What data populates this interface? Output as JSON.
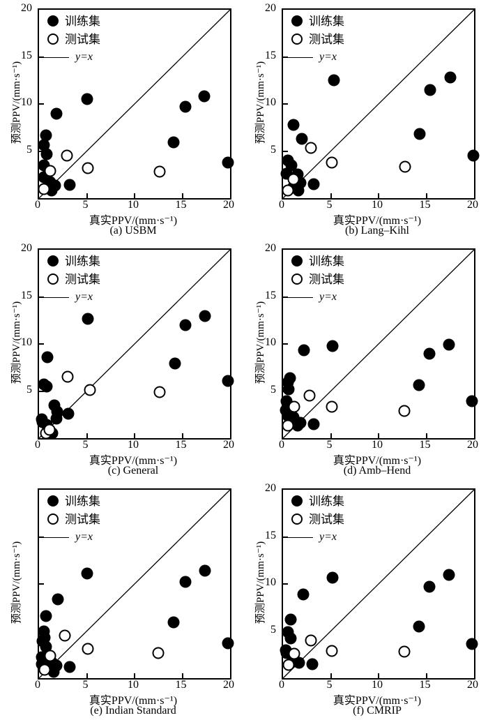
{
  "figure": {
    "description": "Six scatter panels comparing predicted PPV vs true PPV for different empirical formulas",
    "background": "#ffffff",
    "foreground": "#000000"
  },
  "legend": {
    "train_label": "训练集",
    "test_label": "测试集",
    "line_label": "y=x"
  },
  "axes": {
    "xlabel": "真实PPV/(mm·s⁻¹)",
    "ylabel": "预测PPV/(mm·s⁻¹)",
    "x_ticks": [
      0,
      5,
      10,
      15,
      20
    ],
    "y_ticks": [
      5,
      10,
      15,
      20
    ],
    "xlim": [
      0,
      20
    ],
    "ylim": [
      0,
      20
    ]
  },
  "chart_data": [
    {
      "type": "scatter",
      "caption": "(a) USBM",
      "xlabel": "真实PPV/(mm·s⁻¹)",
      "ylabel": "预测PPV/(mm·s⁻¹)",
      "xlim": [
        0,
        20
      ],
      "ylim": [
        0,
        20
      ],
      "x_ticks": [
        0,
        5,
        10,
        15,
        20
      ],
      "y_ticks": [
        5,
        10,
        15,
        20
      ],
      "show_y_tick_labels": true,
      "legend_position": "top-left",
      "series": [
        {
          "name": "训练集",
          "marker": "filled-circle",
          "color": "#000000",
          "points": [
            [
              1.8,
              9.0
            ],
            [
              5.0,
              10.5
            ],
            [
              0.7,
              6.7
            ],
            [
              0.5,
              5.6
            ],
            [
              0.8,
              4.7
            ],
            [
              0.5,
              3.5
            ],
            [
              1.0,
              2.9
            ],
            [
              0.5,
              2.2
            ],
            [
              1.2,
              1.7
            ],
            [
              1.7,
              1.3
            ],
            [
              1.3,
              0.8
            ],
            [
              3.2,
              1.4
            ],
            [
              14.1,
              5.9
            ],
            [
              15.3,
              9.7
            ],
            [
              17.3,
              10.8
            ],
            [
              19.8,
              3.8
            ]
          ]
        },
        {
          "name": "测试集",
          "marker": "open-circle",
          "color": "#000000",
          "points": [
            [
              0.5,
              1.0
            ],
            [
              1.2,
              2.9
            ],
            [
              2.9,
              4.5
            ],
            [
              5.1,
              3.2
            ],
            [
              12.6,
              2.8
            ]
          ]
        },
        {
          "name": "y=x",
          "type": "line",
          "from": [
            0,
            0
          ],
          "to": [
            20,
            20
          ]
        }
      ]
    },
    {
      "type": "scatter",
      "caption": "(b) Lang–Kihl",
      "xlabel": "真实PPV/(mm·s⁻¹)",
      "ylabel": "预测PPV/(mm·s⁻¹)",
      "xlim": [
        0,
        20
      ],
      "ylim": [
        0,
        20
      ],
      "x_ticks": [
        0,
        5,
        10,
        15,
        20
      ],
      "y_ticks": [
        5,
        10,
        15,
        20
      ],
      "show_y_tick_labels": true,
      "legend_position": "top-left",
      "series": [
        {
          "name": "训练集",
          "marker": "filled-circle",
          "color": "#000000",
          "points": [
            [
              1.1,
              7.8
            ],
            [
              2.0,
              6.3
            ],
            [
              5.3,
              12.5
            ],
            [
              0.5,
              4.0
            ],
            [
              0.9,
              3.5
            ],
            [
              0.4,
              2.6
            ],
            [
              1.5,
              2.5
            ],
            [
              1.8,
              1.6
            ],
            [
              1.0,
              1.1
            ],
            [
              1.6,
              0.8
            ],
            [
              3.2,
              1.5
            ],
            [
              14.3,
              6.8
            ],
            [
              15.4,
              11.5
            ],
            [
              17.5,
              12.8
            ],
            [
              19.9,
              4.5
            ]
          ]
        },
        {
          "name": "测试集",
          "marker": "open-circle",
          "color": "#000000",
          "points": [
            [
              0.5,
              0.8
            ],
            [
              1.1,
              2.0
            ],
            [
              2.9,
              5.3
            ],
            [
              5.1,
              3.8
            ],
            [
              12.8,
              3.3
            ]
          ]
        },
        {
          "name": "y=x",
          "type": "line",
          "from": [
            0,
            0
          ],
          "to": [
            20,
            20
          ]
        }
      ]
    },
    {
      "type": "scatter",
      "caption": "(c) General",
      "xlabel": "真实PPV/(mm·s⁻¹)",
      "ylabel": "预测PPV/(mm·s⁻¹)",
      "xlim": [
        0,
        20
      ],
      "ylim": [
        0,
        20
      ],
      "x_ticks": [
        0,
        5,
        10,
        15,
        20
      ],
      "y_ticks": [
        5,
        10,
        15,
        20
      ],
      "show_y_tick_labels": true,
      "legend_position": "top-left",
      "series": [
        {
          "name": "训练集",
          "marker": "filled-circle",
          "color": "#000000",
          "points": [
            [
              0.9,
              8.6
            ],
            [
              5.1,
              12.7
            ],
            [
              0.5,
              5.7
            ],
            [
              0.8,
              5.5
            ],
            [
              1.6,
              3.5
            ],
            [
              1.9,
              2.8
            ],
            [
              3.1,
              2.6
            ],
            [
              1.8,
              2.1
            ],
            [
              0.3,
              2.0
            ],
            [
              0.4,
              1.7
            ],
            [
              0.8,
              1.4
            ],
            [
              1.4,
              0.5
            ],
            [
              14.2,
              7.9
            ],
            [
              15.3,
              12.0
            ],
            [
              17.4,
              13.0
            ],
            [
              19.8,
              6.1
            ]
          ]
        },
        {
          "name": "测试集",
          "marker": "open-circle",
          "color": "#000000",
          "points": [
            [
              0.7,
              0.5
            ],
            [
              1.1,
              0.9
            ],
            [
              3.0,
              6.5
            ],
            [
              5.3,
              5.1
            ],
            [
              12.6,
              4.9
            ]
          ]
        },
        {
          "name": "y=x",
          "type": "line",
          "from": [
            0,
            0
          ],
          "to": [
            20,
            20
          ]
        }
      ]
    },
    {
      "type": "scatter",
      "caption": "(d) Amb–Hend",
      "xlabel": "真实PPV/(mm·s⁻¹)",
      "ylabel": "预测PPV/(mm·s⁻¹)",
      "xlim": [
        0,
        20
      ],
      "ylim": [
        0,
        20
      ],
      "x_ticks": [
        0,
        5,
        10,
        15,
        20
      ],
      "y_ticks": [
        5,
        10,
        15,
        20
      ],
      "show_y_tick_labels": true,
      "legend_position": "top-left",
      "series": [
        {
          "name": "训练集",
          "marker": "filled-circle",
          "color": "#000000",
          "points": [
            [
              2.2,
              9.3
            ],
            [
              5.2,
              9.8
            ],
            [
              0.7,
              6.4
            ],
            [
              0.5,
              5.9
            ],
            [
              0.6,
              5.2
            ],
            [
              0.4,
              3.9
            ],
            [
              0.3,
              3.0
            ],
            [
              0.5,
              2.4
            ],
            [
              1.1,
              2.2
            ],
            [
              1.8,
              1.6
            ],
            [
              1.5,
              1.3
            ],
            [
              3.2,
              1.5
            ],
            [
              14.2,
              5.6
            ],
            [
              15.3,
              9.0
            ],
            [
              17.4,
              9.9
            ],
            [
              19.8,
              3.9
            ]
          ]
        },
        {
          "name": "测试集",
          "marker": "open-circle",
          "color": "#000000",
          "points": [
            [
              0.5,
              1.3
            ],
            [
              1.2,
              3.3
            ],
            [
              2.8,
              4.5
            ],
            [
              5.1,
              3.3
            ],
            [
              12.7,
              2.9
            ]
          ]
        },
        {
          "name": "y=x",
          "type": "line",
          "from": [
            0,
            0
          ],
          "to": [
            20,
            20
          ]
        }
      ]
    },
    {
      "type": "scatter",
      "caption": "(e) Indian Standard",
      "xlabel": "真实PPV/(mm·s⁻¹)",
      "ylabel": "预测PPV/(mm·s⁻¹)",
      "xlim": [
        0,
        20
      ],
      "ylim": [
        0,
        20
      ],
      "x_ticks": [
        0,
        5,
        10,
        15,
        20
      ],
      "y_ticks": [
        5,
        10,
        15,
        20
      ],
      "show_y_tick_labels": false,
      "legend_position": "top-left",
      "series": [
        {
          "name": "训练集",
          "marker": "filled-circle",
          "color": "#000000",
          "points": [
            [
              2.0,
              8.4
            ],
            [
              5.0,
              11.1
            ],
            [
              0.7,
              6.6
            ],
            [
              0.5,
              5.0
            ],
            [
              0.6,
              4.3
            ],
            [
              0.4,
              3.9
            ],
            [
              0.7,
              3.3
            ],
            [
              0.3,
              2.2
            ],
            [
              0.3,
              1.5
            ],
            [
              1.4,
              1.6
            ],
            [
              1.8,
              1.3
            ],
            [
              1.5,
              0.7
            ],
            [
              3.2,
              1.2
            ],
            [
              14.1,
              5.9
            ],
            [
              15.3,
              10.2
            ],
            [
              17.4,
              11.4
            ],
            [
              19.8,
              3.7
            ]
          ]
        },
        {
          "name": "测试集",
          "marker": "open-circle",
          "color": "#000000",
          "points": [
            [
              0.6,
              0.9
            ],
            [
              1.2,
              2.4
            ],
            [
              2.7,
              4.5
            ],
            [
              5.1,
              3.1
            ],
            [
              12.5,
              2.7
            ]
          ]
        },
        {
          "name": "y=x",
          "type": "line",
          "from": [
            0,
            0
          ],
          "to": [
            20,
            20
          ]
        }
      ]
    },
    {
      "type": "scatter",
      "caption": "(f) CMRIP",
      "xlabel": "真实PPV/(mm·s⁻¹)",
      "ylabel": "预测PPV/(mm·s⁻¹)",
      "xlim": [
        0,
        20
      ],
      "ylim": [
        0,
        20
      ],
      "x_ticks": [
        0,
        5,
        10,
        15,
        20
      ],
      "y_ticks": [
        5,
        10,
        15,
        20
      ],
      "show_y_tick_labels": true,
      "legend_position": "top-left",
      "series": [
        {
          "name": "训练集",
          "marker": "filled-circle",
          "color": "#000000",
          "points": [
            [
              2.1,
              8.9
            ],
            [
              5.2,
              10.7
            ],
            [
              0.8,
              6.2
            ],
            [
              0.5,
              4.9
            ],
            [
              0.8,
              4.2
            ],
            [
              0.3,
              3.0
            ],
            [
              0.4,
              2.7
            ],
            [
              1.0,
              2.0
            ],
            [
              1.3,
              1.8
            ],
            [
              1.7,
              1.6
            ],
            [
              3.1,
              1.5
            ],
            [
              14.2,
              5.5
            ],
            [
              15.3,
              9.7
            ],
            [
              17.4,
              11.0
            ],
            [
              19.8,
              3.6
            ]
          ]
        },
        {
          "name": "测试集",
          "marker": "open-circle",
          "color": "#000000",
          "points": [
            [
              0.6,
              1.4
            ],
            [
              1.2,
              2.6
            ],
            [
              2.9,
              4.0
            ],
            [
              5.1,
              2.9
            ],
            [
              12.7,
              2.8
            ]
          ]
        },
        {
          "name": "y=x",
          "type": "line",
          "from": [
            0,
            0
          ],
          "to": [
            20,
            20
          ]
        }
      ]
    }
  ]
}
